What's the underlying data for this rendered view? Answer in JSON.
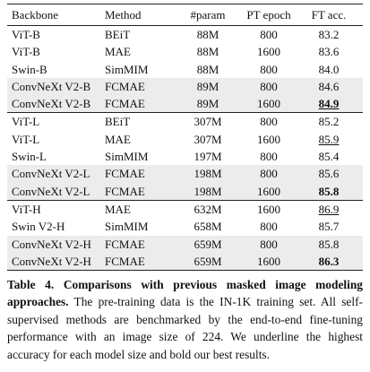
{
  "table": {
    "header": [
      "Backbone",
      "Method",
      "#param",
      "PT epoch",
      "FT acc."
    ],
    "groups": [
      {
        "rows": [
          {
            "cells": [
              "ViT-B",
              "BEiT",
              "88M",
              "800",
              "83.2"
            ]
          },
          {
            "cells": [
              "ViT-B",
              "MAE",
              "88M",
              "1600",
              "83.6"
            ]
          },
          {
            "cells": [
              "Swin-B",
              "SimMIM",
              "88M",
              "800",
              "84.0"
            ]
          },
          {
            "cells": [
              "ConvNeXt V2-B",
              "FCMAE",
              "89M",
              "800",
              "84.6"
            ],
            "shaded": true
          },
          {
            "cells": [
              "ConvNeXt V2-B",
              "FCMAE",
              "89M",
              "1600",
              "84.9"
            ],
            "shaded": true,
            "bold": true,
            "underline": true
          }
        ]
      },
      {
        "rows": [
          {
            "cells": [
              "ViT-L",
              "BEiT",
              "307M",
              "800",
              "85.2"
            ]
          },
          {
            "cells": [
              "ViT-L",
              "MAE",
              "307M",
              "1600",
              "85.9"
            ],
            "underline": true
          },
          {
            "cells": [
              "Swin-L",
              "SimMIM",
              "197M",
              "800",
              "85.4"
            ]
          },
          {
            "cells": [
              "ConvNeXt V2-L",
              "FCMAE",
              "198M",
              "800",
              "85.6"
            ],
            "shaded": true
          },
          {
            "cells": [
              "ConvNeXt V2-L",
              "FCMAE",
              "198M",
              "1600",
              "85.8"
            ],
            "shaded": true,
            "bold": true
          }
        ]
      },
      {
        "rows": [
          {
            "cells": [
              "ViT-H",
              "MAE",
              "632M",
              "1600",
              "86.9"
            ],
            "underline": true
          },
          {
            "cells": [
              "Swin V2-H",
              "SimMIM",
              "658M",
              "800",
              "85.7"
            ]
          },
          {
            "cells": [
              "ConvNeXt V2-H",
              "FCMAE",
              "659M",
              "800",
              "85.8"
            ],
            "shaded": true
          },
          {
            "cells": [
              "ConvNeXt V2-H",
              "FCMAE",
              "659M",
              "1600",
              "86.3"
            ],
            "shaded": true,
            "bold": true
          }
        ]
      }
    ]
  },
  "caption": {
    "label": "Table 4.",
    "title": "Comparisons with previous masked image modeling approaches.",
    "text": "The pre-training data is the IN-1K training set. All self-supervised methods are benchmarked by the end-to-end fine-tuning performance with an image size of 224. We underline the highest accuracy for each model size and bold our best results."
  }
}
